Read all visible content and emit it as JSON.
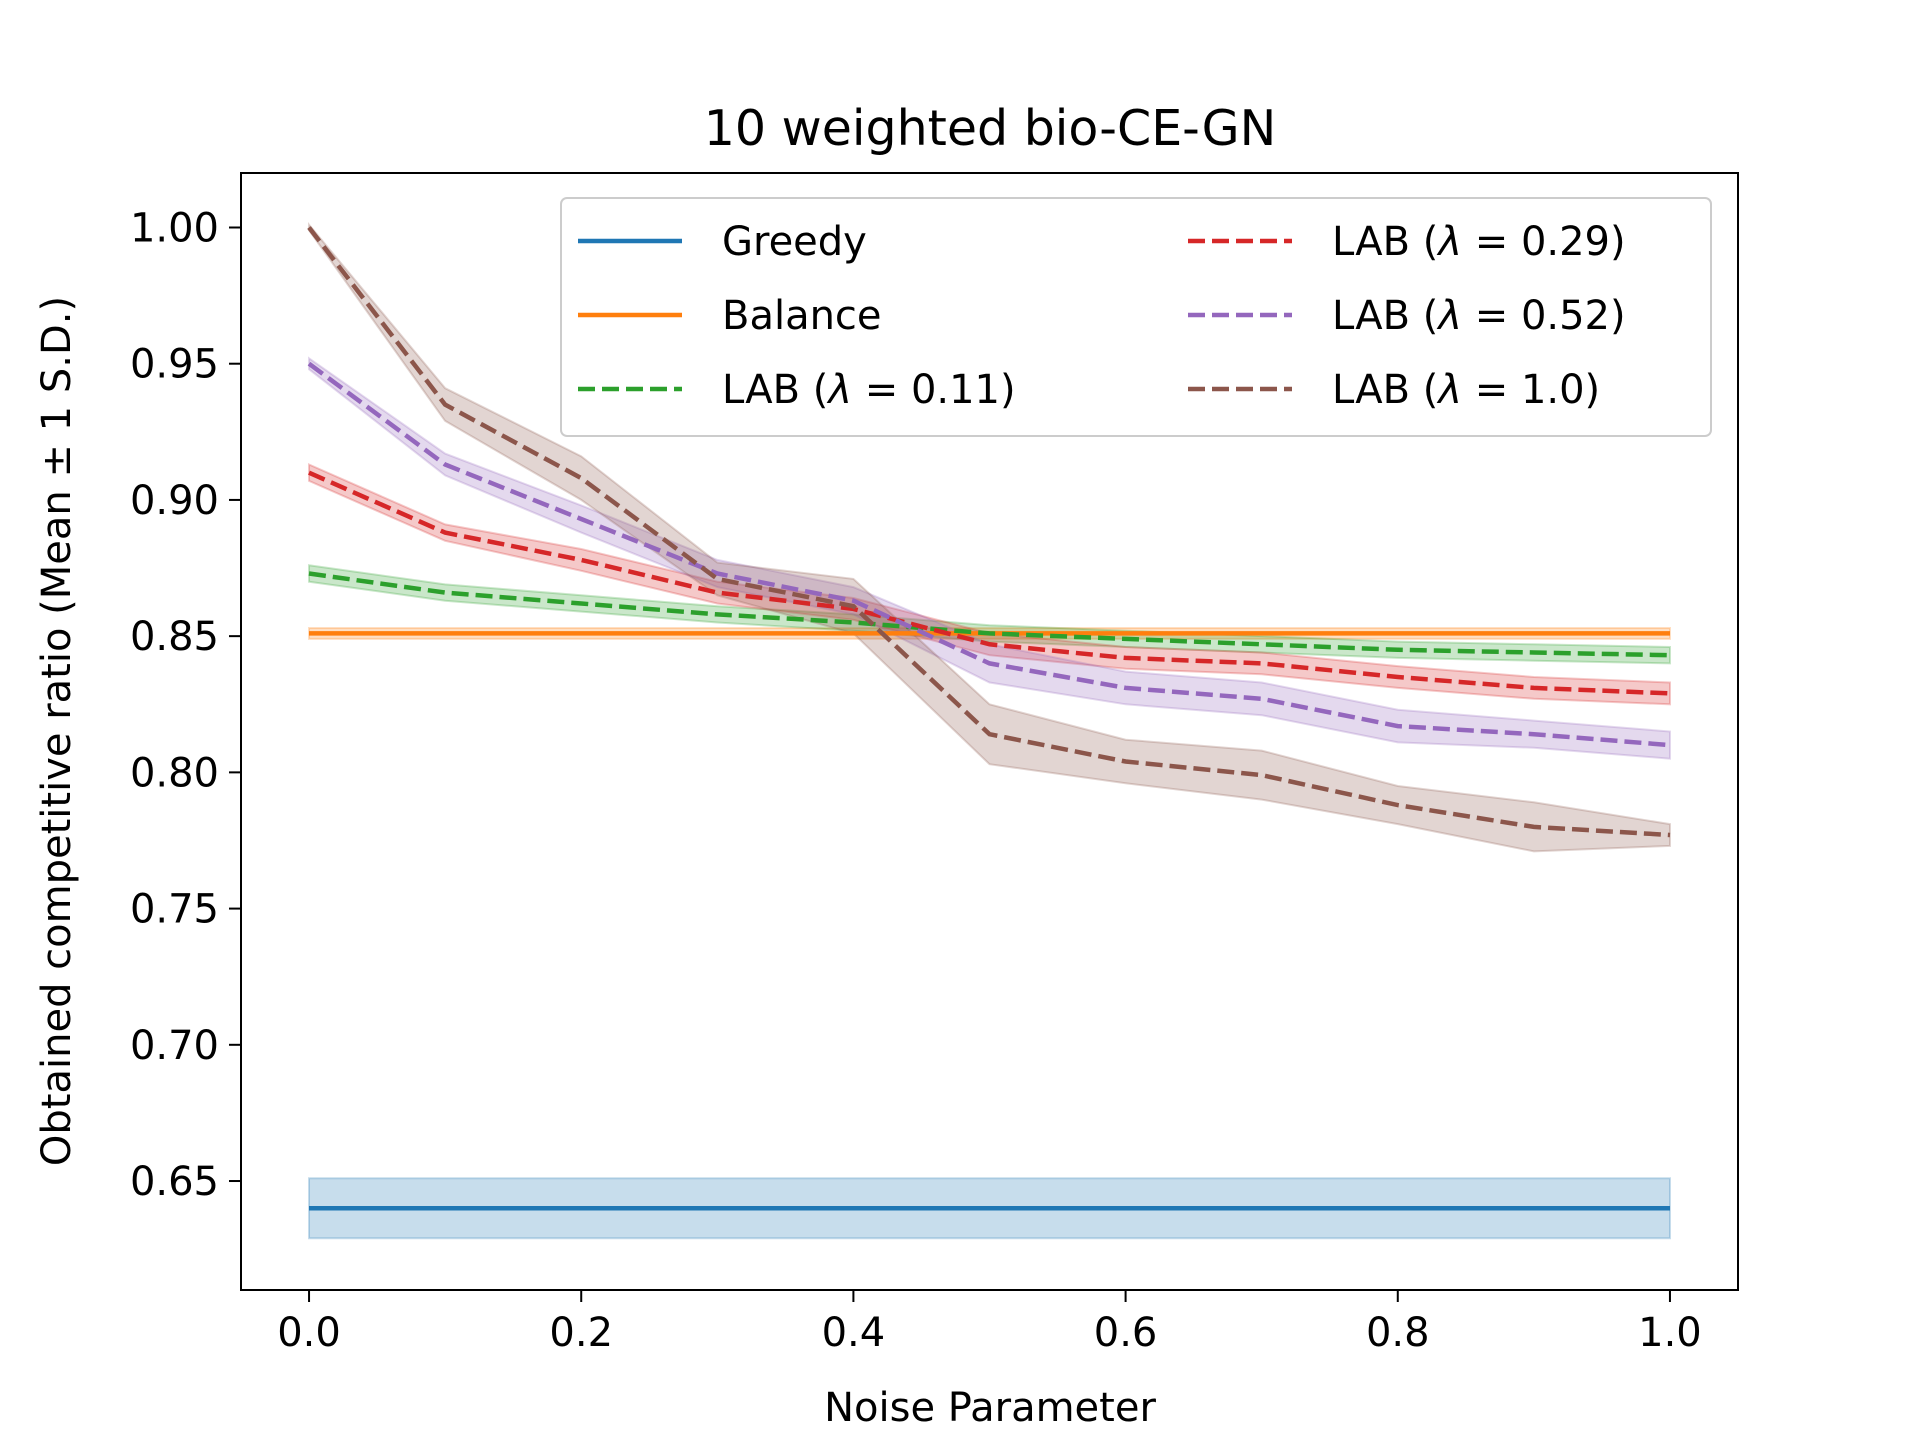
{
  "chart_data": {
    "type": "line",
    "title": "10 weighted bio-CE-GN",
    "xlabel": "Noise Parameter",
    "ylabel": "Obtained competitive ratio (Mean ± 1 S.D.)",
    "xlim": [
      -0.05,
      1.05
    ],
    "ylim": [
      0.61,
      1.02
    ],
    "x_ticks": [
      0.0,
      0.2,
      0.4,
      0.6,
      0.8,
      1.0
    ],
    "x_tick_labels": [
      "0.0",
      "0.2",
      "0.4",
      "0.6",
      "0.8",
      "1.0"
    ],
    "y_ticks": [
      0.65,
      0.7,
      0.75,
      0.8,
      0.85,
      0.9,
      0.95,
      1.0
    ],
    "y_tick_labels": [
      "0.65",
      "0.70",
      "0.75",
      "0.80",
      "0.85",
      "0.90",
      "0.95",
      "1.00"
    ],
    "legend_position": "top-right",
    "legend_columns": 2,
    "x": [
      0.0,
      0.1,
      0.2,
      0.3,
      0.4,
      0.5,
      0.6,
      0.7,
      0.8,
      0.9,
      1.0
    ],
    "series": [
      {
        "name": "Greedy",
        "color": "#1f77b4",
        "style": "solid",
        "values": [
          0.64,
          0.64,
          0.64,
          0.64,
          0.64,
          0.64,
          0.64,
          0.64,
          0.64,
          0.64,
          0.64
        ],
        "sd": [
          0.011,
          0.011,
          0.011,
          0.011,
          0.011,
          0.011,
          0.011,
          0.011,
          0.011,
          0.011,
          0.011
        ]
      },
      {
        "name": "Balance",
        "color": "#ff7f0e",
        "style": "solid",
        "values": [
          0.851,
          0.851,
          0.851,
          0.851,
          0.851,
          0.851,
          0.851,
          0.851,
          0.851,
          0.851,
          0.851
        ],
        "sd": [
          0.002,
          0.002,
          0.002,
          0.002,
          0.002,
          0.002,
          0.002,
          0.002,
          0.002,
          0.002,
          0.002
        ]
      },
      {
        "name_prefix": "LAB (",
        "name_symbol": "λ",
        "name_suffix": " = 0.11)",
        "color": "#2ca02c",
        "style": "dashed",
        "values": [
          0.873,
          0.866,
          0.862,
          0.858,
          0.855,
          0.851,
          0.849,
          0.847,
          0.845,
          0.844,
          0.843
        ],
        "sd": [
          0.003,
          0.003,
          0.003,
          0.003,
          0.003,
          0.003,
          0.003,
          0.003,
          0.003,
          0.003,
          0.003
        ]
      },
      {
        "name_prefix": "LAB (",
        "name_symbol": "λ",
        "name_suffix": " = 0.29)",
        "color": "#d62728",
        "style": "dashed",
        "values": [
          0.91,
          0.888,
          0.878,
          0.866,
          0.86,
          0.847,
          0.842,
          0.84,
          0.835,
          0.831,
          0.829
        ],
        "sd": [
          0.003,
          0.003,
          0.004,
          0.004,
          0.004,
          0.004,
          0.004,
          0.004,
          0.004,
          0.004,
          0.004
        ]
      },
      {
        "name_prefix": "LAB (",
        "name_symbol": "λ",
        "name_suffix": " = 0.52)",
        "color": "#9467bd",
        "style": "dashed",
        "values": [
          0.95,
          0.913,
          0.893,
          0.873,
          0.863,
          0.84,
          0.831,
          0.827,
          0.817,
          0.814,
          0.81
        ],
        "sd": [
          0.002,
          0.004,
          0.005,
          0.005,
          0.005,
          0.007,
          0.006,
          0.006,
          0.006,
          0.005,
          0.005
        ]
      },
      {
        "name_prefix": "LAB (",
        "name_symbol": "λ",
        "name_suffix": " = 1.0)",
        "color": "#8c564b",
        "style": "dashed",
        "values": [
          1.0,
          0.935,
          0.908,
          0.871,
          0.861,
          0.814,
          0.804,
          0.799,
          0.788,
          0.78,
          0.777
        ],
        "sd": [
          0.001,
          0.006,
          0.008,
          0.006,
          0.01,
          0.011,
          0.008,
          0.009,
          0.007,
          0.009,
          0.004
        ]
      }
    ]
  }
}
